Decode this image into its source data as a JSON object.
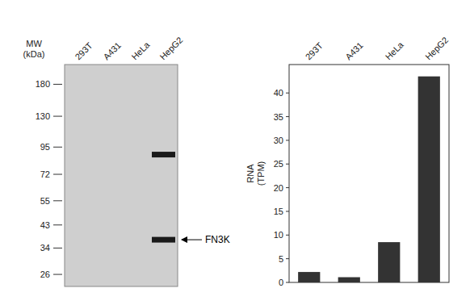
{
  "chart_data": [
    {
      "type": "blot",
      "ylabel": [
        "MW",
        "(kDa)"
      ],
      "categories": [
        "293T",
        "A431",
        "HeLa",
        "HepG2"
      ],
      "log": "y",
      "ylim": [
        23,
        220
      ],
      "yticks": [
        180,
        130,
        95,
        72,
        55,
        43,
        34,
        26
      ],
      "series": [
        {
          "values": [
            null,
            null,
            null,
            88
          ]
        },
        {
          "values": [
            null,
            null,
            null,
            37
          ]
        }
      ],
      "color": "#1a1a1a",
      "annotations": [
        {
          "text": "FN3K",
          "value": 37
        }
      ]
    },
    {
      "type": "bar",
      "ylabel": [
        "RNA",
        "(TPM)"
      ],
      "categories": [
        "293T",
        "A431",
        "HeLa",
        "HepG2"
      ],
      "values": [
        2.2,
        1.1,
        8.5,
        43.5
      ],
      "color": "#333333",
      "ylim": [
        0,
        46
      ],
      "yticks": [
        0,
        5,
        10,
        15,
        20,
        25,
        30,
        35,
        40
      ],
      "grid": false
    }
  ]
}
